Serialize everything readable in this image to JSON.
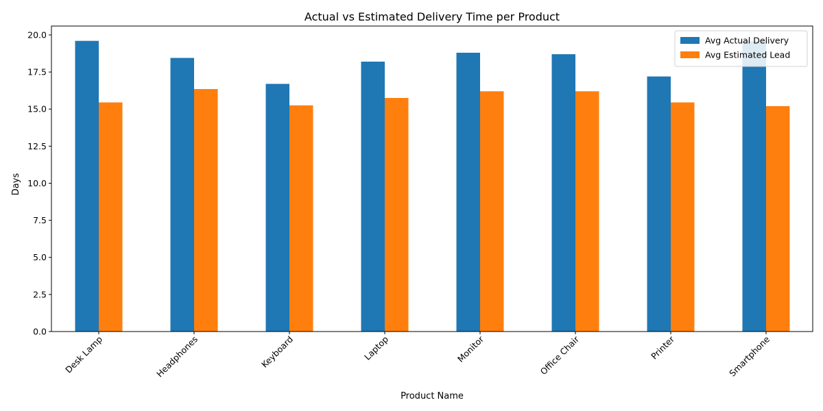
{
  "chart_data": {
    "type": "bar",
    "title": "Actual vs Estimated Delivery Time per Product",
    "xlabel": "Product Name",
    "ylabel": "Days",
    "categories": [
      "Desk Lamp",
      "Headphones",
      "Keyboard",
      "Laptop",
      "Monitor",
      "Office Chair",
      "Printer",
      "Smartphone"
    ],
    "series": [
      {
        "name": "Avg Actual Delivery",
        "color": "#1f77b4",
        "values": [
          19.6,
          18.45,
          16.7,
          18.2,
          18.8,
          18.7,
          17.2,
          19.6
        ]
      },
      {
        "name": "Avg Estimated Lead",
        "color": "#ff7f0e",
        "values": [
          15.45,
          16.35,
          15.25,
          15.75,
          16.2,
          16.2,
          15.45,
          15.2
        ]
      }
    ],
    "ylim": [
      0,
      20.6
    ],
    "yticks": [
      "0.0",
      "2.5",
      "5.0",
      "7.5",
      "10.0",
      "12.5",
      "15.0",
      "17.5",
      "20.0"
    ],
    "legend_position": "top-right",
    "xtick_rotation": "45 degrees",
    "grid": false
  }
}
